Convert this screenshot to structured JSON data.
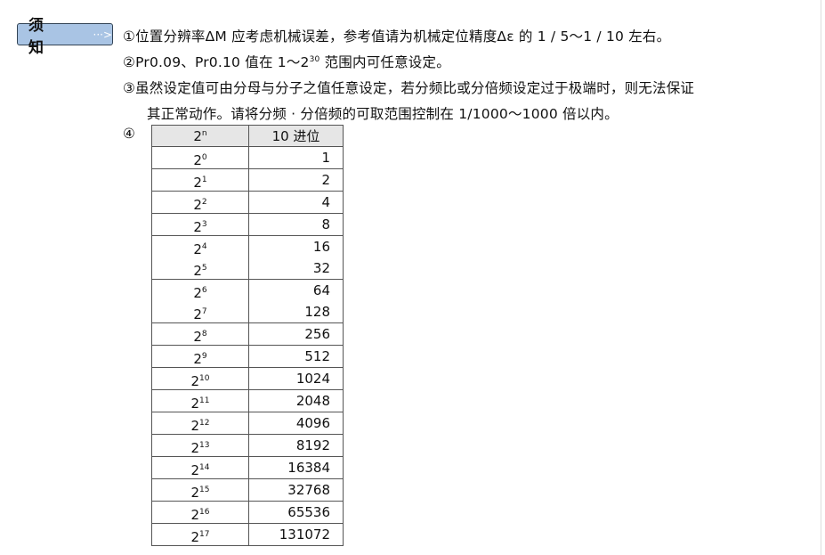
{
  "badge": {
    "label": "须 知",
    "arrow": "···>"
  },
  "notes": [
    "①位置分辨率ΔM 应考虑机械误差，参考值请为机械定位精度Δε 的 1 / 5～1 / 10 左右。",
    "②Pr0.09、Pr0.10 值在 1～2",
    "③虽然设定值可由分母与分子之值任意设定，若分频比或分倍频设定过于极端时，则无法保证",
    "其正常动作。请将分频 · 分倍频的可取范围控制在 1/1000～1000 倍以内。",
    "④"
  ],
  "note2_sup": "30",
  "note2_tail": "范围内可任意设定。",
  "table": {
    "headers": {
      "base": "2",
      "exp": "n",
      "decimal": "10 进位"
    },
    "rows": [
      [
        [
          "0",
          "1"
        ]
      ],
      [
        [
          "1",
          "2"
        ]
      ],
      [
        [
          "2",
          "4"
        ]
      ],
      [
        [
          "3",
          "8"
        ]
      ],
      [
        [
          "4",
          "16"
        ],
        [
          "5",
          "32"
        ]
      ],
      [
        [
          "6",
          "64"
        ],
        [
          "7",
          "128"
        ]
      ],
      [
        [
          "8",
          "256"
        ]
      ],
      [
        [
          "9",
          "512"
        ]
      ],
      [
        [
          "10",
          "1024"
        ]
      ],
      [
        [
          "11",
          "2048"
        ]
      ],
      [
        [
          "12",
          "4096"
        ]
      ],
      [
        [
          "13",
          "8192"
        ]
      ],
      [
        [
          "14",
          "16384"
        ]
      ],
      [
        [
          "15",
          "32768"
        ]
      ],
      [
        [
          "16",
          "65536"
        ]
      ],
      [
        [
          "17",
          "131072"
        ]
      ]
    ]
  }
}
